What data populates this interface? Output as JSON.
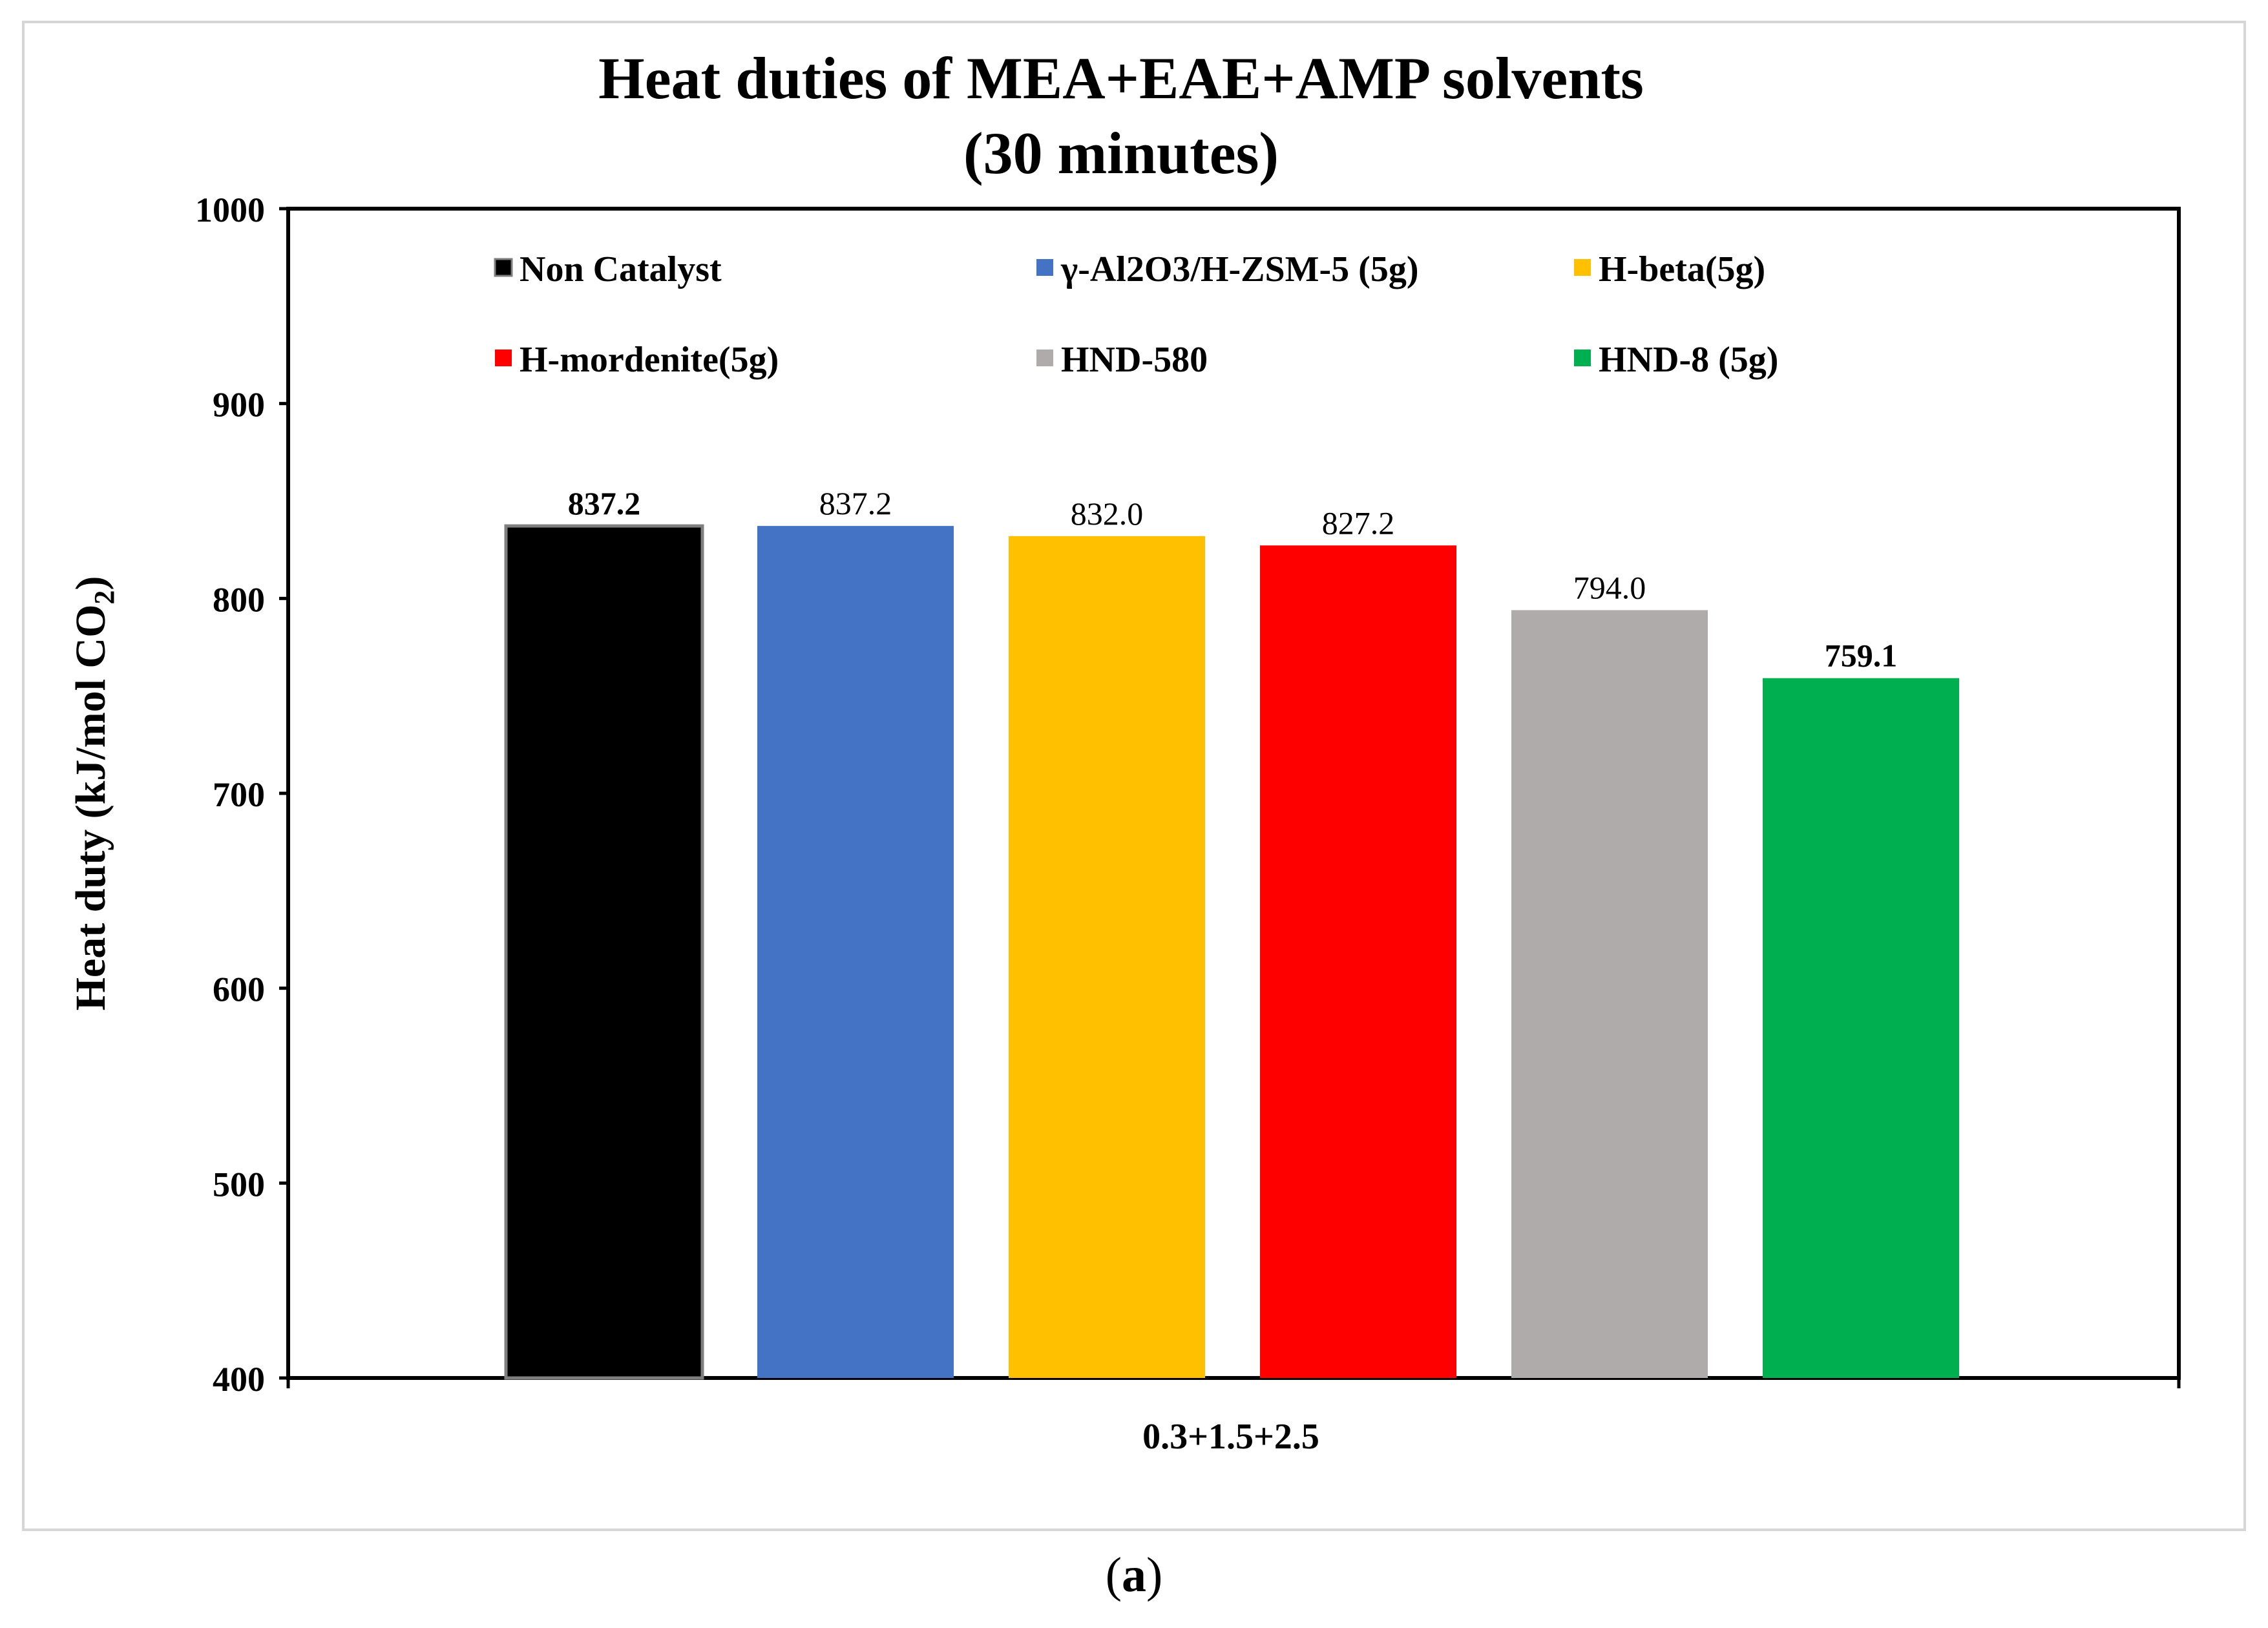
{
  "chart_data": {
    "type": "bar",
    "title": "Heat duties of MEA+EAE+AMP solvents",
    "subtitle": "(30 minutes)",
    "xlabel": "0.3+1.5+2.5",
    "ylabel": {
      "prefix": "Heat duty  (kJ/mol CO",
      "subscript": "2",
      "suffix": ")"
    },
    "ylim": [
      400,
      1000
    ],
    "yticks": [
      "400",
      "500",
      "600",
      "700",
      "800",
      "900",
      "1000"
    ],
    "legend_position": "top",
    "categories": [
      "0.3+1.5+2.5"
    ],
    "series": [
      {
        "name": "Non Catalyst",
        "values": [
          837.2
        ],
        "label": "837.2",
        "color": "#000000",
        "outline": "#7f7f7f"
      },
      {
        "name": "γ-Al2O3/H-ZSM-5 (5g)",
        "values": [
          837.2
        ],
        "label": "837.2",
        "color": "#4472c4"
      },
      {
        "name": "H-beta(5g)",
        "values": [
          832.0
        ],
        "label": "832.0",
        "color": "#ffc000"
      },
      {
        "name": "H-mordenite(5g)",
        "values": [
          827.2
        ],
        "label": "827.2",
        "color": "#ff0000"
      },
      {
        "name": "HND-580",
        "values": [
          794.0
        ],
        "label": "794.0",
        "color": "#afabab"
      },
      {
        "name": "HND-8 (5g)",
        "values": [
          759.1
        ],
        "label": "759.1",
        "color": "#00b050"
      }
    ]
  },
  "caption": {
    "open": "(",
    "letter": "a",
    "close": ")"
  }
}
